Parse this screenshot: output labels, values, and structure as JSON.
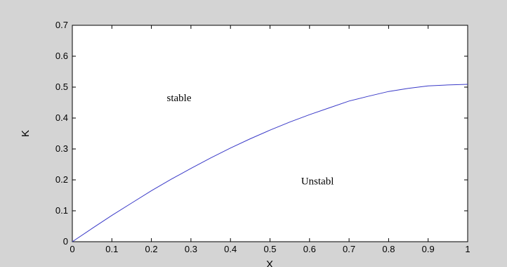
{
  "chart_data": {
    "type": "line",
    "xlabel": "X",
    "ylabel": "K",
    "xlim": [
      0,
      1
    ],
    "ylim": [
      0,
      0.7
    ],
    "x_ticks": [
      "0",
      "0.1",
      "0.2",
      "0.3",
      "0.4",
      "0.5",
      "0.6",
      "0.7",
      "0.8",
      "0.9",
      "1"
    ],
    "y_ticks": [
      "0",
      "0.1",
      "0.2",
      "0.3",
      "0.4",
      "0.5",
      "0.6",
      "0.7"
    ],
    "grid": false,
    "series": [
      {
        "color": "#3a3ac8",
        "x": [
          0,
          0.05,
          0.1,
          0.15,
          0.2,
          0.25,
          0.3,
          0.35,
          0.4,
          0.45,
          0.5,
          0.55,
          0.6,
          0.65,
          0.7,
          0.75,
          0.8,
          0.85,
          0.9,
          0.95,
          1.0
        ],
        "y": [
          0,
          0.043,
          0.085,
          0.125,
          0.165,
          0.202,
          0.237,
          0.271,
          0.303,
          0.333,
          0.361,
          0.387,
          0.411,
          0.433,
          0.455,
          0.471,
          0.486,
          0.496,
          0.504,
          0.507,
          0.509
        ]
      }
    ],
    "annotations": [
      {
        "text": "stable",
        "x": 0.27,
        "y": 0.455
      },
      {
        "text": "Unstabl",
        "x": 0.62,
        "y": 0.185
      }
    ]
  },
  "colors": {
    "figure_background": "#d4d4d4",
    "plot_background": "#ffffff",
    "axis": "#000000"
  }
}
